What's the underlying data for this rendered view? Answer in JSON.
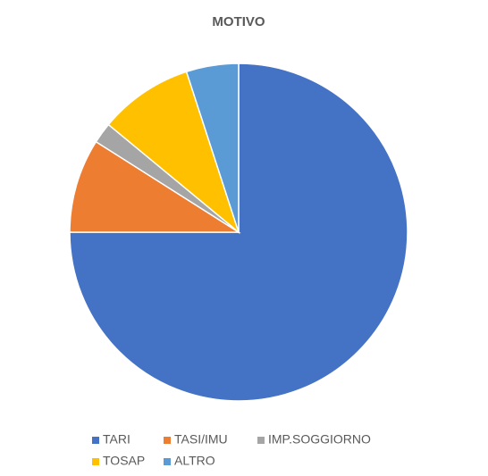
{
  "chart_data": {
    "type": "pie",
    "title": "MOTIVO",
    "categories": [
      "TARI",
      "TASI/IMU",
      "IMP.SOGGIORNO",
      "TOSAP",
      "ALTRO"
    ],
    "values": [
      75,
      9,
      2,
      9,
      5
    ],
    "colors": [
      "#4472c4",
      "#ed7d31",
      "#a5a5a5",
      "#ffc000",
      "#5b9bd5"
    ],
    "legend": "bottom"
  }
}
